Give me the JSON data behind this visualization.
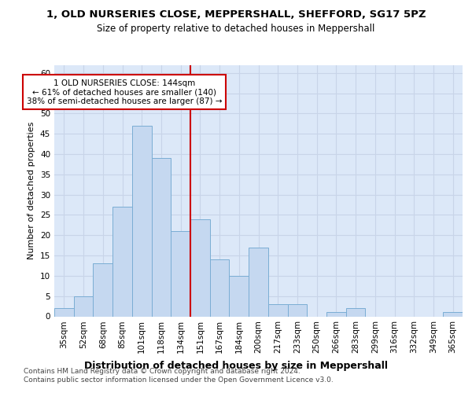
{
  "title_line1": "1, OLD NURSERIES CLOSE, MEPPERSHALL, SHEFFORD, SG17 5PZ",
  "title_line2": "Size of property relative to detached houses in Meppershall",
  "xlabel": "Distribution of detached houses by size in Meppershall",
  "ylabel": "Number of detached properties",
  "categories": [
    "35sqm",
    "52sqm",
    "68sqm",
    "85sqm",
    "101sqm",
    "118sqm",
    "134sqm",
    "151sqm",
    "167sqm",
    "184sqm",
    "200sqm",
    "217sqm",
    "233sqm",
    "250sqm",
    "266sqm",
    "283sqm",
    "299sqm",
    "316sqm",
    "332sqm",
    "349sqm",
    "365sqm"
  ],
  "values": [
    2,
    5,
    13,
    27,
    47,
    39,
    21,
    24,
    14,
    10,
    17,
    3,
    3,
    0,
    1,
    2,
    0,
    0,
    0,
    0,
    1
  ],
  "bar_color": "#c5d8f0",
  "bar_edge_color": "#7aadd4",
  "reference_line_color": "#cc0000",
  "reference_line_index": 6.5,
  "annotation_text": "1 OLD NURSERIES CLOSE: 144sqm\n← 61% of detached houses are smaller (140)\n38% of semi-detached houses are larger (87) →",
  "annotation_box_facecolor": "#ffffff",
  "annotation_box_edgecolor": "#cc0000",
  "ylim": [
    0,
    62
  ],
  "yticks": [
    0,
    5,
    10,
    15,
    20,
    25,
    30,
    35,
    40,
    45,
    50,
    55,
    60
  ],
  "grid_color": "#c8d4e8",
  "background_color": "#dce8f8",
  "footnote": "Contains HM Land Registry data © Crown copyright and database right 2024.\nContains public sector information licensed under the Open Government Licence v3.0.",
  "title_fontsize": 9.5,
  "subtitle_fontsize": 8.5,
  "tick_fontsize": 7.5,
  "ylabel_fontsize": 8,
  "xlabel_fontsize": 9,
  "annot_fontsize": 7.5,
  "footnote_fontsize": 6.5
}
